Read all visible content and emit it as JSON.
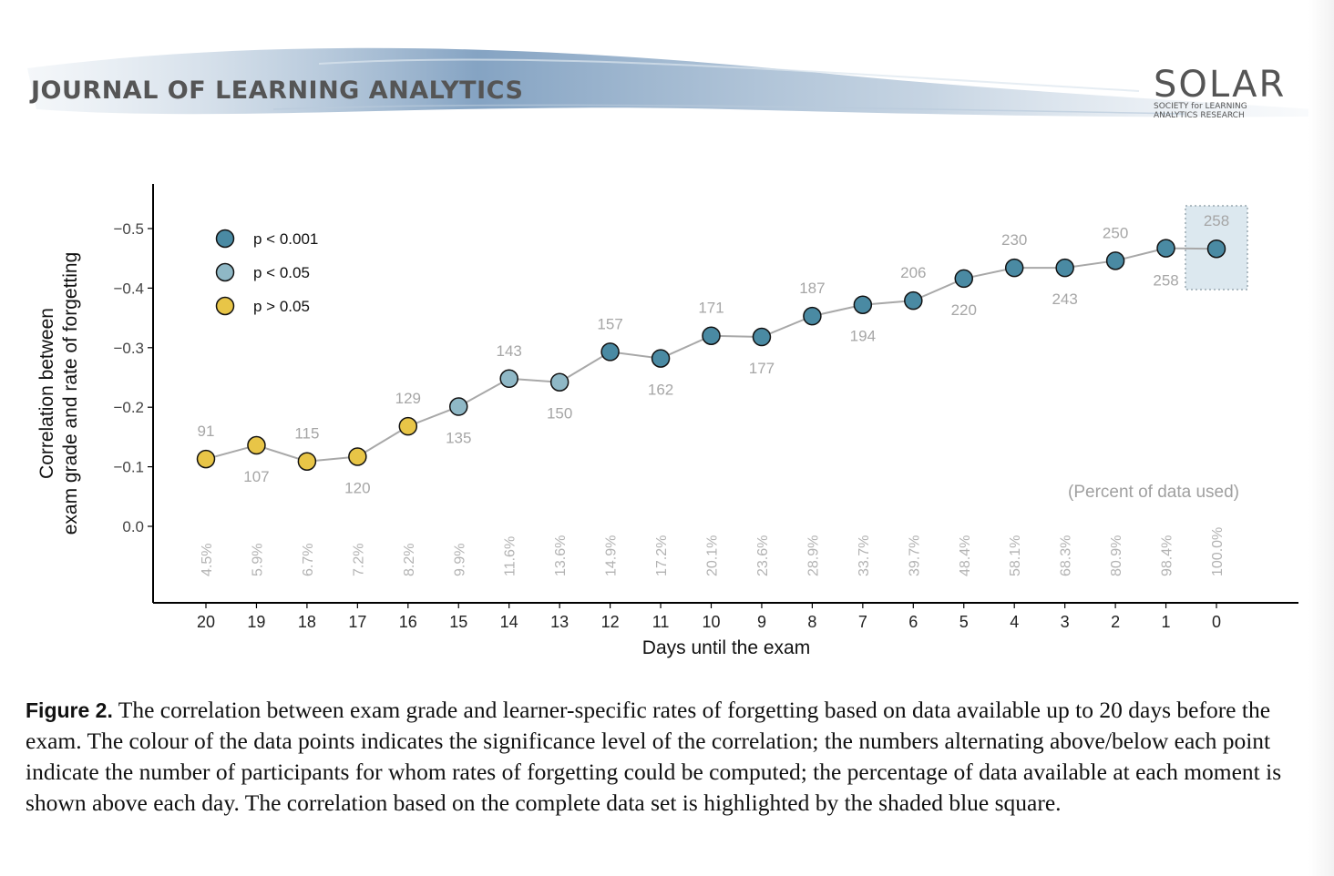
{
  "header": {
    "journal_title": "JOURNAL OF LEARNING ANALYTICS",
    "logo_word": "SOLAR",
    "logo_subtitle_line1": "SOCIETY for LEARNING",
    "logo_subtitle_line2": "ANALYTICS RESEARCH"
  },
  "chart_data": {
    "type": "scatter",
    "xlabel": "Days until the exam",
    "ylabel_line1": "Correlation between",
    "ylabel_line2": "exam grade and rate of forgetting",
    "x_ticks": [
      "20",
      "19",
      "18",
      "17",
      "16",
      "15",
      "14",
      "13",
      "12",
      "11",
      "10",
      "9",
      "8",
      "7",
      "6",
      "5",
      "4",
      "3",
      "2",
      "1",
      "0"
    ],
    "y_ticks": [
      "−0.5",
      "−0.4",
      "−0.3",
      "−0.2",
      "−0.1",
      "0.0"
    ],
    "y_tick_values": [
      -0.5,
      -0.4,
      -0.3,
      -0.2,
      -0.1,
      0.0
    ],
    "y_axis_inverted": true,
    "legend": [
      {
        "label": "p < 0.001",
        "color": "#4a8aa3"
      },
      {
        "label": "p < 0.05",
        "color": "#8fb8c6"
      },
      {
        "label": "p > 0.05",
        "color": "#e8c547"
      }
    ],
    "legend_position": "top-left",
    "percent_note": "(Percent of data used)",
    "points": [
      {
        "day": 20,
        "r": -0.113,
        "n": "91",
        "percent": "4.5%",
        "sig": "p > 0.05"
      },
      {
        "day": 19,
        "r": -0.136,
        "n": "107",
        "percent": "5.9%",
        "sig": "p > 0.05"
      },
      {
        "day": 18,
        "r": -0.109,
        "n": "115",
        "percent": "6.7%",
        "sig": "p > 0.05"
      },
      {
        "day": 17,
        "r": -0.117,
        "n": "120",
        "percent": "7.2%",
        "sig": "p > 0.05"
      },
      {
        "day": 16,
        "r": -0.168,
        "n": "129",
        "percent": "8.2%",
        "sig": "p > 0.05"
      },
      {
        "day": 15,
        "r": -0.201,
        "n": "135",
        "percent": "9.9%",
        "sig": "p < 0.05"
      },
      {
        "day": 14,
        "r": -0.248,
        "n": "143",
        "percent": "11.6%",
        "sig": "p < 0.05"
      },
      {
        "day": 13,
        "r": -0.242,
        "n": "150",
        "percent": "13.6%",
        "sig": "p < 0.05"
      },
      {
        "day": 12,
        "r": -0.293,
        "n": "157",
        "percent": "14.9%",
        "sig": "p < 0.001"
      },
      {
        "day": 11,
        "r": -0.282,
        "n": "162",
        "percent": "17.2%",
        "sig": "p < 0.001"
      },
      {
        "day": 10,
        "r": -0.32,
        "n": "171",
        "percent": "20.1%",
        "sig": "p < 0.001"
      },
      {
        "day": 9,
        "r": -0.318,
        "n": "177",
        "percent": "23.6%",
        "sig": "p < 0.001"
      },
      {
        "day": 8,
        "r": -0.353,
        "n": "187",
        "percent": "28.9%",
        "sig": "p < 0.001"
      },
      {
        "day": 7,
        "r": -0.372,
        "n": "194",
        "percent": "33.7%",
        "sig": "p < 0.001"
      },
      {
        "day": 6,
        "r": -0.379,
        "n": "206",
        "percent": "39.7%",
        "sig": "p < 0.001"
      },
      {
        "day": 5,
        "r": -0.416,
        "n": "220",
        "percent": "48.4%",
        "sig": "p < 0.001"
      },
      {
        "day": 4,
        "r": -0.434,
        "n": "230",
        "percent": "58.1%",
        "sig": "p < 0.001"
      },
      {
        "day": 3,
        "r": -0.434,
        "n": "243",
        "percent": "68.3%",
        "sig": "p < 0.001"
      },
      {
        "day": 2,
        "r": -0.446,
        "n": "250",
        "percent": "80.9%",
        "sig": "p < 0.001"
      },
      {
        "day": 1,
        "r": -0.467,
        "n": "258",
        "percent": "98.4%",
        "sig": "p < 0.001"
      },
      {
        "day": 0,
        "r": -0.466,
        "n": "258",
        "percent": "100.0%",
        "sig": "p < 0.001"
      }
    ],
    "highlighted_day": 0
  },
  "caption": {
    "label": "Figure 2.",
    "text": " The correlation between exam grade and learner-specific rates of forgetting based on data available up to 20 days before the exam. The colour of the data points indicates the significance level of the correlation; the numbers alternating above/below each point indicate the number of participants for whom rates of forgetting could be computed; the percentage of data available at each moment is shown above each day. The correlation based on the complete data set is highlighted by the shaded blue square."
  }
}
